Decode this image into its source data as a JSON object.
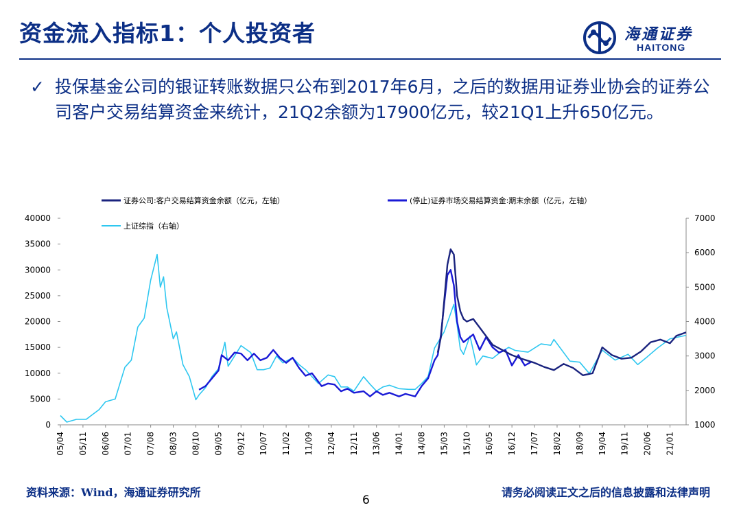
{
  "header": {
    "title": "资金流入指标1：个人投资者",
    "logo_cn": "海通证券",
    "logo_en": "HAITONG"
  },
  "summary": {
    "bullet_icon": "checkmark-icon",
    "text": "投保基金公司的银证转账数据只公布到2017年6月，之后的数据用证券业协会的证券公司客户交易结算资金来统计，21Q2余额为17900亿元，较21Q1上升650亿元。"
  },
  "colors": {
    "brand": "#0c2f86",
    "series_dark": "#1a237e",
    "series_blue": "#1a1ad6",
    "series_cyan": "#2ec7f0"
  },
  "chart_data": {
    "type": "line",
    "x_tick_labels": [
      "05/04",
      "05/11",
      "06/06",
      "07/01",
      "07/08",
      "08/03",
      "08/10",
      "09/05",
      "09/12",
      "10/07",
      "11/02",
      "11/09",
      "12/04",
      "12/11",
      "13/06",
      "14/01",
      "14/08",
      "15/03",
      "15/10",
      "16/05",
      "16/12",
      "17/07",
      "18/02",
      "18/09",
      "19/04",
      "19/11",
      "20/06",
      "21/01"
    ],
    "y_left": {
      "ticks": [
        0,
        5000,
        10000,
        15000,
        20000,
        25000,
        30000,
        35000,
        40000
      ],
      "ylim": [
        0,
        40000
      ]
    },
    "y_right": {
      "ticks": [
        1000,
        2000,
        3000,
        4000,
        5000,
        6000,
        7000
      ],
      "ylim": [
        1000,
        7000
      ]
    },
    "legend": {
      "position": "top",
      "items": [
        "证券公司:客户交易结算资金余额（亿元，左轴）",
        "(停止)证券市场交易结算资金:期末余额（亿元，左轴）",
        "上证综指（右轴）"
      ]
    },
    "series": [
      {
        "name": "证券公司:客户交易结算资金余额（亿元，左轴）",
        "axis": "left",
        "color": "#1a237e",
        "points": [
          [
            "15/01",
            14000
          ],
          [
            "15/02",
            17000
          ],
          [
            "15/03",
            24000
          ],
          [
            "15/04",
            31000
          ],
          [
            "15/05",
            34000
          ],
          [
            "15/06",
            33000
          ],
          [
            "15/07",
            25000
          ],
          [
            "15/08",
            22000
          ],
          [
            "15/09",
            20500
          ],
          [
            "15/10",
            20000
          ],
          [
            "15/12",
            20500
          ],
          [
            "16/03",
            18000
          ],
          [
            "16/06",
            15500
          ],
          [
            "16/09",
            14500
          ],
          [
            "16/12",
            13500
          ],
          [
            "17/03",
            12800
          ],
          [
            "17/07",
            12000
          ],
          [
            "17/10",
            11200
          ],
          [
            "18/01",
            10600
          ],
          [
            "18/04",
            11800
          ],
          [
            "18/07",
            11000
          ],
          [
            "18/10",
            9600
          ],
          [
            "19/01",
            10000
          ],
          [
            "19/04",
            15000
          ],
          [
            "19/07",
            13500
          ],
          [
            "19/10",
            12800
          ],
          [
            "20/01",
            13000
          ],
          [
            "20/04",
            14200
          ],
          [
            "20/07",
            16000
          ],
          [
            "20/10",
            16500
          ],
          [
            "21/01",
            15800
          ],
          [
            "21/03",
            17250
          ],
          [
            "21/06",
            17900
          ]
        ]
      },
      {
        "name": "(停止)证券市场交易结算资金:期末余额（亿元，左轴）",
        "axis": "left",
        "color": "#1a1ad6",
        "points": [
          [
            "08/11",
            6800
          ],
          [
            "09/01",
            7500
          ],
          [
            "09/03",
            9000
          ],
          [
            "09/05",
            10500
          ],
          [
            "09/06",
            13500
          ],
          [
            "09/08",
            12500
          ],
          [
            "09/10",
            14000
          ],
          [
            "09/12",
            13800
          ],
          [
            "10/02",
            12500
          ],
          [
            "10/04",
            13800
          ],
          [
            "10/06",
            12500
          ],
          [
            "10/08",
            13000
          ],
          [
            "10/10",
            14500
          ],
          [
            "10/12",
            13000
          ],
          [
            "11/02",
            12000
          ],
          [
            "11/04",
            13000
          ],
          [
            "11/06",
            11000
          ],
          [
            "11/08",
            9500
          ],
          [
            "11/10",
            10000
          ],
          [
            "12/01",
            7500
          ],
          [
            "12/03",
            8000
          ],
          [
            "12/05",
            7800
          ],
          [
            "12/07",
            6500
          ],
          [
            "12/09",
            7000
          ],
          [
            "12/11",
            6200
          ],
          [
            "13/02",
            6500
          ],
          [
            "13/04",
            5500
          ],
          [
            "13/06",
            6500
          ],
          [
            "13/08",
            5800
          ],
          [
            "13/10",
            6200
          ],
          [
            "14/01",
            5500
          ],
          [
            "14/03",
            6000
          ],
          [
            "14/06",
            5500
          ],
          [
            "14/08",
            7500
          ],
          [
            "14/10",
            9000
          ],
          [
            "14/12",
            12500
          ],
          [
            "15/01",
            13500
          ],
          [
            "15/02",
            17500
          ],
          [
            "15/03",
            23500
          ],
          [
            "15/04",
            29000
          ],
          [
            "15/05",
            30000
          ],
          [
            "15/06",
            27000
          ],
          [
            "15/07",
            20000
          ],
          [
            "15/08",
            17000
          ],
          [
            "15/09",
            16000
          ],
          [
            "15/10",
            16500
          ],
          [
            "15/12",
            17500
          ],
          [
            "16/02",
            14500
          ],
          [
            "16/04",
            17000
          ],
          [
            "16/06",
            15000
          ],
          [
            "16/08",
            14000
          ],
          [
            "16/10",
            14500
          ],
          [
            "16/12",
            11500
          ],
          [
            "17/02",
            13500
          ],
          [
            "17/04",
            11500
          ],
          [
            "17/06",
            12200
          ]
        ]
      },
      {
        "name": "上证综指（右轴）",
        "axis": "right",
        "color": "#2ec7f0",
        "points": [
          [
            "05/04",
            1270
          ],
          [
            "05/06",
            1080
          ],
          [
            "05/09",
            1160
          ],
          [
            "05/12",
            1160
          ],
          [
            "06/02",
            1300
          ],
          [
            "06/04",
            1440
          ],
          [
            "06/06",
            1670
          ],
          [
            "06/09",
            1750
          ],
          [
            "06/12",
            2670
          ],
          [
            "07/02",
            2880
          ],
          [
            "07/04",
            3840
          ],
          [
            "07/06",
            4100
          ],
          [
            "07/08",
            5200
          ],
          [
            "07/10",
            5950
          ],
          [
            "07/11",
            5000
          ],
          [
            "07/12",
            5300
          ],
          [
            "08/01",
            4400
          ],
          [
            "08/03",
            3500
          ],
          [
            "08/04",
            3700
          ],
          [
            "08/06",
            2750
          ],
          [
            "08/08",
            2400
          ],
          [
            "08/10",
            1730
          ],
          [
            "08/11",
            1870
          ],
          [
            "09/01",
            2080
          ],
          [
            "09/03",
            2400
          ],
          [
            "09/05",
            2630
          ],
          [
            "09/07",
            3400
          ],
          [
            "09/08",
            2700
          ],
          [
            "09/10",
            3000
          ],
          [
            "09/12",
            3300
          ],
          [
            "10/03",
            3100
          ],
          [
            "10/05",
            2600
          ],
          [
            "10/07",
            2600
          ],
          [
            "10/09",
            2650
          ],
          [
            "10/11",
            3000
          ],
          [
            "11/01",
            2800
          ],
          [
            "11/04",
            2950
          ],
          [
            "11/06",
            2750
          ],
          [
            "11/08",
            2600
          ],
          [
            "11/10",
            2400
          ],
          [
            "11/12",
            2200
          ],
          [
            "12/03",
            2450
          ],
          [
            "12/05",
            2400
          ],
          [
            "12/07",
            2100
          ],
          [
            "12/09",
            2100
          ],
          [
            "12/11",
            1980
          ],
          [
            "13/02",
            2400
          ],
          [
            "13/04",
            2180
          ],
          [
            "13/06",
            1980
          ],
          [
            "13/08",
            2100
          ],
          [
            "13/10",
            2150
          ],
          [
            "14/01",
            2050
          ],
          [
            "14/04",
            2030
          ],
          [
            "14/06",
            2030
          ],
          [
            "14/08",
            2200
          ],
          [
            "14/10",
            2400
          ],
          [
            "14/12",
            3230
          ],
          [
            "15/03",
            3700
          ],
          [
            "15/06",
            4500
          ],
          [
            "15/07",
            3900
          ],
          [
            "15/08",
            3200
          ],
          [
            "15/09",
            3050
          ],
          [
            "15/11",
            3580
          ],
          [
            "16/01",
            2740
          ],
          [
            "16/03",
            3000
          ],
          [
            "16/06",
            2930
          ],
          [
            "16/08",
            3080
          ],
          [
            "16/11",
            3250
          ],
          [
            "17/01",
            3160
          ],
          [
            "17/05",
            3110
          ],
          [
            "17/09",
            3350
          ],
          [
            "17/12",
            3310
          ],
          [
            "18/01",
            3480
          ],
          [
            "18/06",
            2850
          ],
          [
            "18/09",
            2820
          ],
          [
            "18/12",
            2490
          ],
          [
            "19/04",
            3170
          ],
          [
            "19/08",
            2880
          ],
          [
            "19/12",
            3050
          ],
          [
            "20/03",
            2750
          ],
          [
            "20/06",
            2980
          ],
          [
            "20/09",
            3220
          ],
          [
            "21/01",
            3500
          ],
          [
            "21/06",
            3600
          ]
        ]
      }
    ]
  },
  "footer": {
    "source": "资料来源：Wind，海通证券研究所",
    "page_number": "6",
    "disclaimer": "请务必阅读正文之后的信息披露和法律声明"
  }
}
